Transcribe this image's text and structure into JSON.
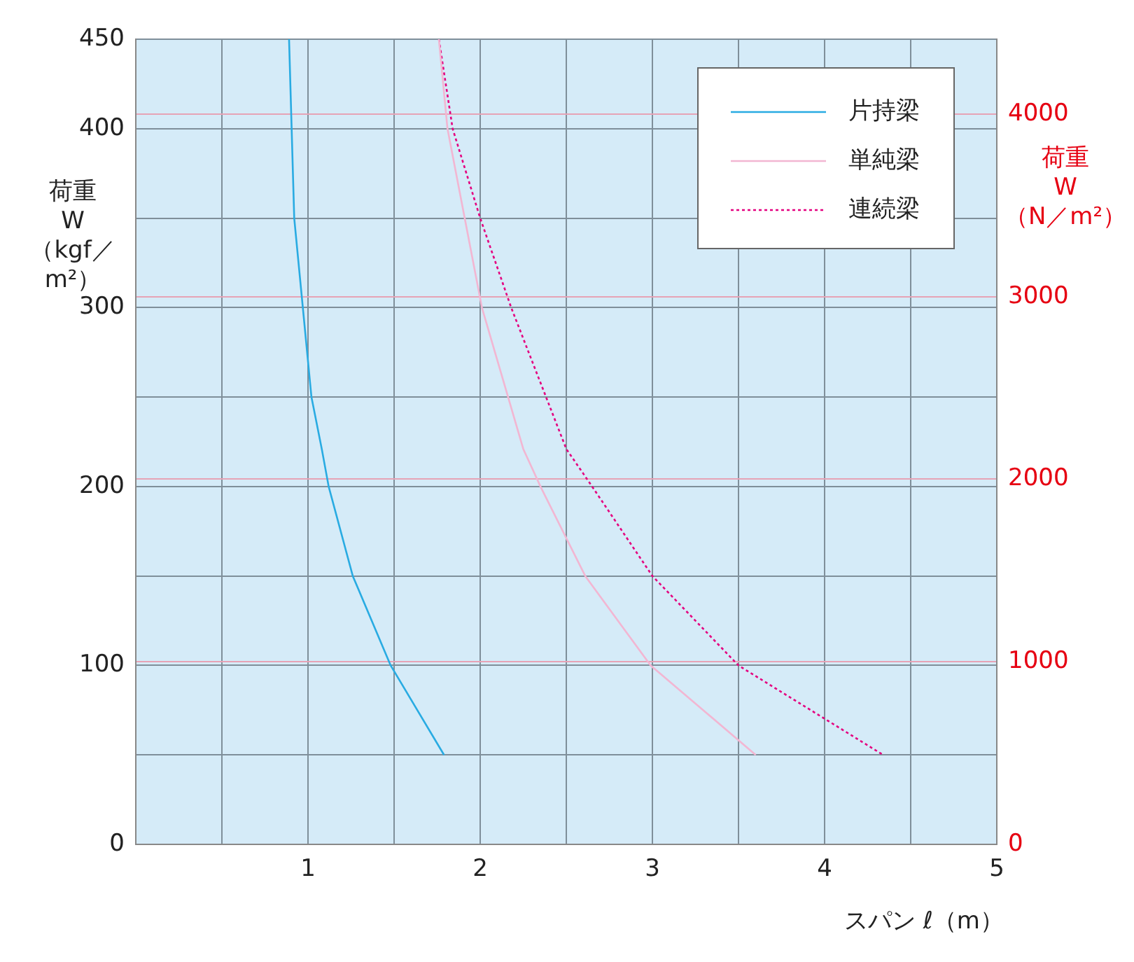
{
  "chart_data": {
    "type": "line",
    "xlabel": "スパン ℓ（m）",
    "ylabel": "荷重\nW\n（kgf／m²）",
    "y2label": "荷重\nW\n（N／m²）",
    "xlim": [
      0,
      5
    ],
    "xticks": [
      {
        "value": 0,
        "label": null
      },
      {
        "value": 0.5,
        "label": null
      },
      1,
      {
        "value": 1.5,
        "label": null
      },
      2,
      {
        "value": 2.5,
        "label": null
      },
      3,
      {
        "value": 3.5,
        "label": null
      },
      4,
      {
        "value": 4.5,
        "label": null
      },
      5
    ],
    "ylim": [
      0,
      450
    ],
    "yticks": [
      0,
      {
        "value": 50,
        "label": null
      },
      100,
      {
        "value": 150,
        "label": null
      },
      200,
      {
        "value": 250,
        "label": null
      },
      300,
      {
        "value": 350,
        "label": null
      },
      400,
      450
    ],
    "y2lim": [
      0,
      4410
    ],
    "y2ticks": [
      0,
      1000,
      2000,
      3000,
      4000
    ],
    "grid": true,
    "legend": "top right",
    "series": [
      {
        "name": "片持梁",
        "color": "#29abe2",
        "line_style": "solid",
        "x": [
          0.89,
          0.92,
          0.97,
          1.02,
          1.08,
          1.12,
          1.26,
          1.48,
          1.79
        ],
        "values": [
          450,
          350,
          300,
          250,
          221,
          200,
          150,
          100,
          50
        ]
      },
      {
        "name": "単純梁",
        "color": "#f2b6d2",
        "line_style": "solid",
        "x": [
          1.76,
          1.81,
          1.91,
          2.01,
          2.25,
          2.35,
          2.61,
          2.99,
          3.6
        ],
        "values": [
          450,
          400,
          350,
          300,
          221,
          200,
          150,
          100,
          50
        ]
      },
      {
        "name": "連続梁",
        "color": "#e4007f",
        "line_style": "dotted",
        "x": [
          1.76,
          1.84,
          2.0,
          2.18,
          2.5,
          2.65,
          3.0,
          3.5,
          4.34
        ],
        "values": [
          450,
          400,
          350,
          300,
          221,
          200,
          150,
          100,
          50
        ]
      }
    ]
  }
}
